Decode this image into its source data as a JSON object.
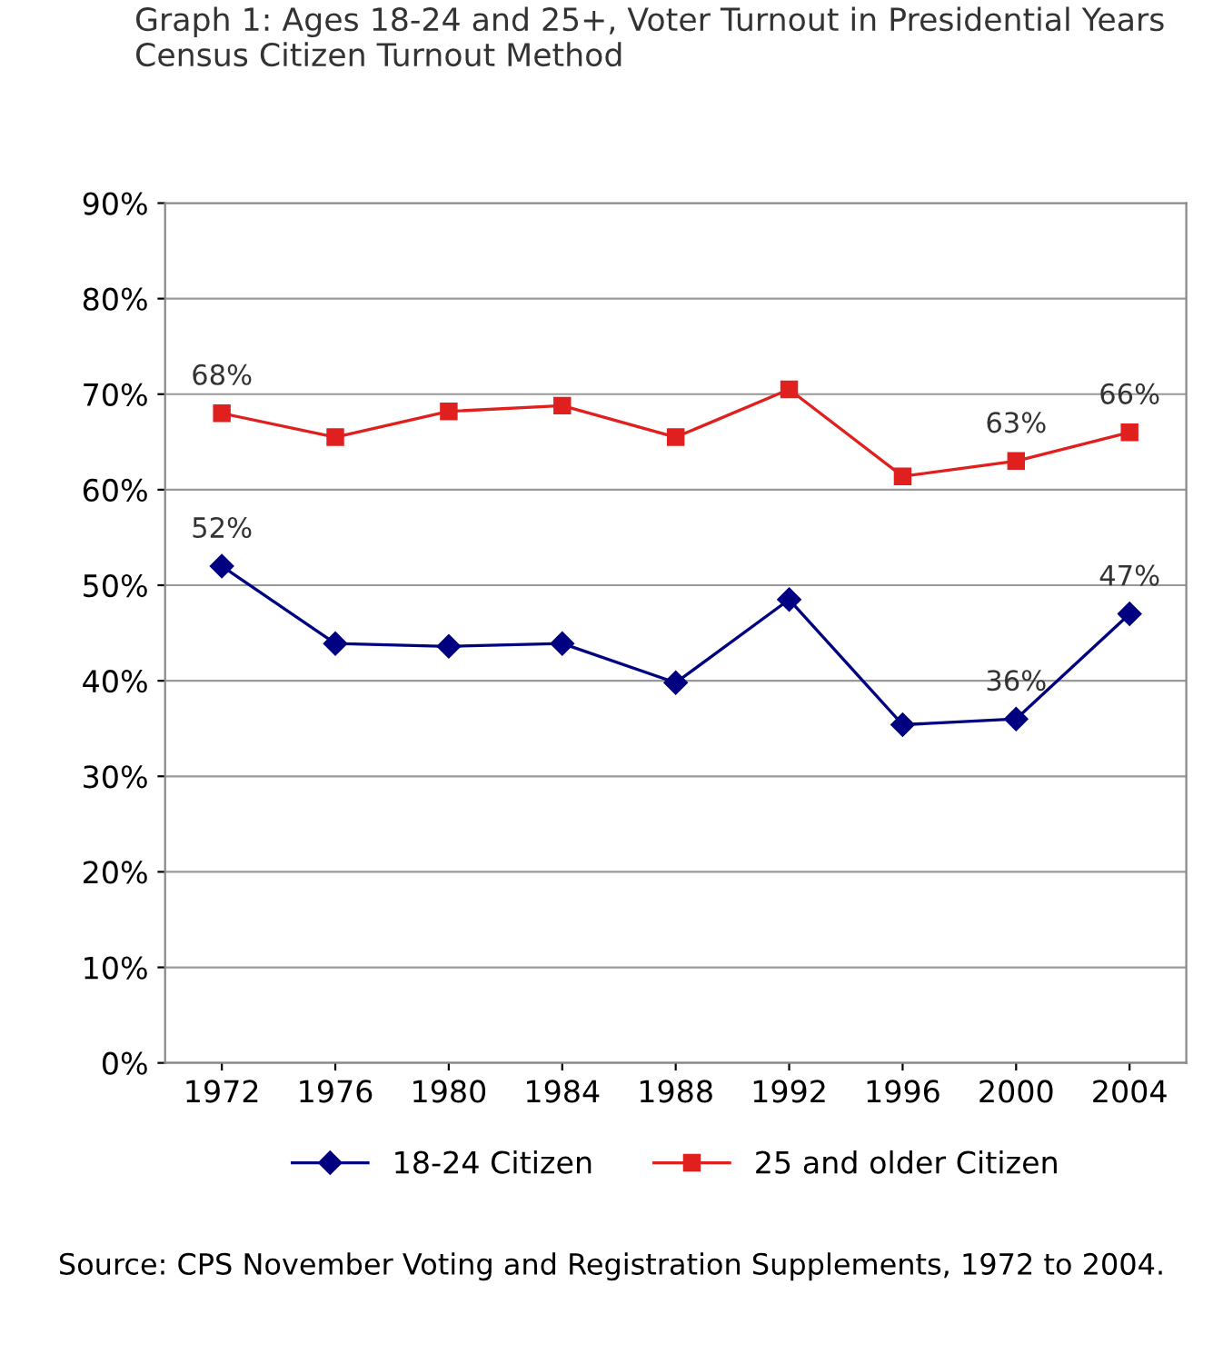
{
  "chart_data": {
    "type": "line",
    "title": "Graph 1: Ages 18-24 and 25+, Voter Turnout in Presidential Years Census Citizen Turnout Method",
    "categories": [
      "1972",
      "1976",
      "1980",
      "1984",
      "1988",
      "1992",
      "1996",
      "2000",
      "2004"
    ],
    "series": [
      {
        "name": "18-24 Citizen",
        "color": "#000080",
        "marker": "diamond",
        "values": [
          52,
          43.9,
          43.6,
          43.9,
          39.8,
          48.5,
          35.4,
          36,
          47
        ],
        "value_labels": [
          "52%",
          null,
          null,
          null,
          null,
          null,
          null,
          "36%",
          "47%"
        ]
      },
      {
        "name": "25 and older Citizen",
        "color": "#e0201f",
        "marker": "square",
        "values": [
          68,
          65.5,
          68.2,
          68.8,
          65.5,
          70.5,
          61.4,
          63,
          66
        ],
        "value_labels": [
          "68%",
          null,
          null,
          null,
          null,
          null,
          null,
          "63%",
          "66%"
        ]
      }
    ],
    "ylim": [
      0,
      90
    ],
    "yticks": [
      {
        "value": 0,
        "label": "0%"
      },
      {
        "value": 10,
        "label": "10%"
      },
      {
        "value": 20,
        "label": "20%"
      },
      {
        "value": 30,
        "label": "30%"
      },
      {
        "value": 40,
        "label": "40%"
      },
      {
        "value": 50,
        "label": "50%"
      },
      {
        "value": 60,
        "label": "60%"
      },
      {
        "value": 70,
        "label": "70%"
      },
      {
        "value": 80,
        "label": "80%"
      },
      {
        "value": 90,
        "label": "90%"
      }
    ],
    "grid": "y",
    "legend": "bottom",
    "annotations": [
      "Source: CPS November Voting and Registration Supplements, 1972 to 2004."
    ]
  }
}
